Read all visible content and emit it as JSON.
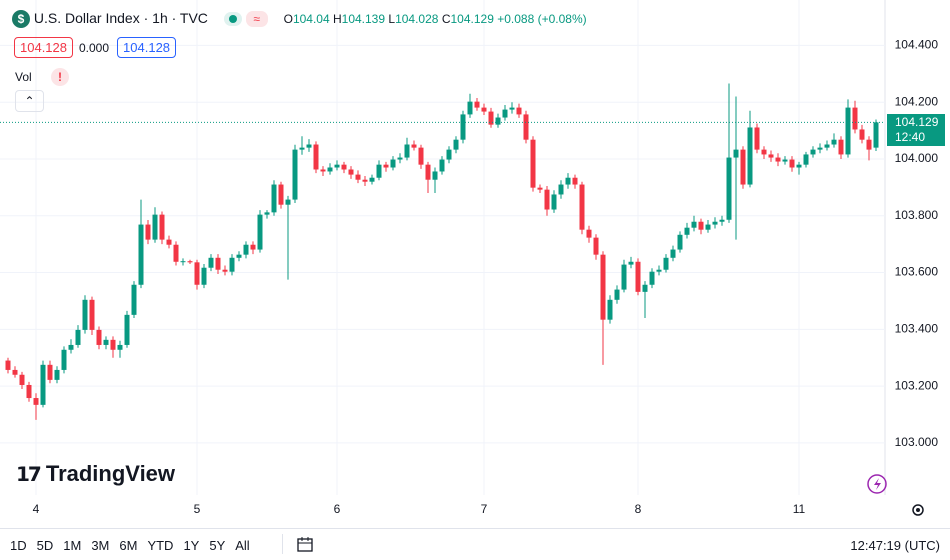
{
  "header": {
    "symbol_icon": "$",
    "title": "U.S. Dollar Index · 1h · TVC",
    "o_label": "O",
    "h_label": "H",
    "l_label": "L",
    "c_label": "C",
    "change": "+0.088",
    "change_pct": "(+0.08%)",
    "bid": "104.128",
    "spread": "0.000",
    "ask": "104.128",
    "volume_label": "Vol",
    "countdown": "12:40",
    "logo": "TradingView"
  },
  "toolbar": {
    "ranges": [
      "1D",
      "5D",
      "1M",
      "3M",
      "6M",
      "YTD",
      "1Y",
      "5Y",
      "All"
    ],
    "time": "12:47:19 (UTC)"
  },
  "chart_data": {
    "type": "candlestick",
    "up_color": "#089981",
    "down_color": "#f23645",
    "grid": true,
    "ylim": [
      102.82,
      104.56
    ],
    "yticks": [
      {
        "value": 103.0,
        "label": "103.000"
      },
      {
        "value": 103.2,
        "label": "103.200"
      },
      {
        "value": 103.4,
        "label": "103.400"
      },
      {
        "value": 103.6,
        "label": "103.600"
      },
      {
        "value": 103.8,
        "label": "103.800"
      },
      {
        "value": 104.0,
        "label": "104.000"
      },
      {
        "value": 104.2,
        "label": "104.200"
      },
      {
        "value": 104.4,
        "label": "104.400"
      }
    ],
    "categories": [
      null,
      null,
      null,
      null,
      "4",
      null,
      null,
      null,
      null,
      null,
      null,
      null,
      null,
      null,
      null,
      null,
      null,
      null,
      null,
      null,
      null,
      null,
      null,
      null,
      null,
      null,
      null,
      "5",
      null,
      null,
      null,
      null,
      null,
      null,
      null,
      null,
      null,
      null,
      null,
      null,
      null,
      null,
      null,
      null,
      null,
      null,
      null,
      "6",
      null,
      null,
      null,
      null,
      null,
      null,
      null,
      null,
      null,
      null,
      null,
      null,
      null,
      null,
      null,
      null,
      null,
      null,
      null,
      null,
      "7",
      null,
      null,
      null,
      null,
      null,
      null,
      null,
      null,
      null,
      null,
      null,
      null,
      null,
      null,
      null,
      null,
      null,
      null,
      null,
      null,
      null,
      "8",
      null,
      null,
      null,
      null,
      null,
      null,
      null,
      null,
      null,
      null,
      null,
      null,
      null,
      null,
      null,
      null,
      null,
      null,
      null,
      null,
      null,
      null,
      "11",
      null,
      null,
      null,
      null,
      null,
      null,
      null,
      null,
      null,
      null,
      null
    ],
    "ohlc": [
      [
        103.29,
        103.3,
        103.245,
        103.257
      ],
      [
        103.257,
        103.27,
        103.23,
        103.24
      ],
      [
        103.24,
        103.25,
        103.19,
        103.204
      ],
      [
        103.204,
        103.215,
        103.145,
        103.158
      ],
      [
        103.158,
        103.175,
        103.081,
        103.134
      ],
      [
        103.134,
        103.29,
        103.125,
        103.275
      ],
      [
        103.275,
        103.29,
        103.21,
        103.222
      ],
      [
        103.222,
        103.27,
        103.21,
        103.257
      ],
      [
        103.257,
        103.34,
        103.245,
        103.328
      ],
      [
        103.328,
        103.365,
        103.315,
        103.345
      ],
      [
        103.345,
        103.415,
        103.335,
        103.398
      ],
      [
        103.398,
        103.52,
        103.385,
        103.504
      ],
      [
        103.504,
        103.515,
        103.38,
        103.398
      ],
      [
        103.398,
        103.41,
        103.33,
        103.345
      ],
      [
        103.345,
        103.375,
        103.33,
        103.363
      ],
      [
        103.363,
        103.375,
        103.3,
        103.328
      ],
      [
        103.328,
        103.36,
        103.3,
        103.345
      ],
      [
        103.345,
        103.465,
        103.335,
        103.451
      ],
      [
        103.451,
        103.57,
        103.44,
        103.557
      ],
      [
        103.557,
        103.857,
        103.545,
        103.769
      ],
      [
        103.769,
        103.785,
        103.7,
        103.716
      ],
      [
        103.716,
        103.83,
        103.705,
        103.804
      ],
      [
        103.804,
        103.815,
        103.7,
        103.716
      ],
      [
        103.716,
        103.73,
        103.685,
        103.698
      ],
      [
        103.698,
        103.71,
        103.625,
        103.638
      ],
      [
        103.638,
        103.65,
        103.625,
        103.64
      ],
      [
        103.64,
        103.645,
        103.63,
        103.636
      ],
      [
        103.636,
        103.645,
        103.54,
        103.557
      ],
      [
        103.557,
        103.63,
        103.545,
        103.617
      ],
      [
        103.617,
        103.665,
        103.605,
        103.652
      ],
      [
        103.652,
        103.665,
        103.595,
        103.61
      ],
      [
        103.61,
        103.625,
        103.59,
        103.603
      ],
      [
        103.603,
        103.665,
        103.59,
        103.652
      ],
      [
        103.652,
        103.675,
        103.64,
        103.663
      ],
      [
        103.663,
        103.71,
        103.65,
        103.698
      ],
      [
        103.698,
        103.71,
        103.665,
        103.681
      ],
      [
        103.681,
        103.82,
        103.67,
        103.804
      ],
      [
        103.804,
        103.82,
        103.79,
        103.812
      ],
      [
        103.812,
        103.925,
        103.8,
        103.91
      ],
      [
        103.91,
        103.92,
        103.825,
        103.839
      ],
      [
        103.839,
        103.87,
        103.575,
        103.857
      ],
      [
        103.857,
        104.05,
        103.845,
        104.033
      ],
      [
        104.033,
        104.08,
        104.015,
        104.04
      ],
      [
        104.04,
        104.07,
        104.025,
        104.051
      ],
      [
        104.051,
        104.062,
        103.95,
        103.963
      ],
      [
        103.963,
        103.975,
        103.94,
        103.956
      ],
      [
        103.956,
        103.985,
        103.945,
        103.97
      ],
      [
        103.97,
        103.995,
        103.96,
        103.98
      ],
      [
        103.98,
        103.99,
        103.95,
        103.963
      ],
      [
        103.963,
        103.975,
        103.93,
        103.945
      ],
      [
        103.945,
        103.96,
        103.915,
        103.927
      ],
      [
        103.927,
        103.94,
        103.905,
        103.92
      ],
      [
        103.92,
        103.945,
        103.91,
        103.934
      ],
      [
        103.934,
        103.995,
        103.925,
        103.98
      ],
      [
        103.98,
        103.99,
        103.955,
        103.97
      ],
      [
        103.97,
        104.01,
        103.96,
        103.998
      ],
      [
        103.998,
        104.02,
        103.985,
        104.005
      ],
      [
        104.005,
        104.075,
        103.995,
        104.051
      ],
      [
        104.051,
        104.065,
        104.03,
        104.04
      ],
      [
        104.04,
        104.05,
        103.965,
        103.98
      ],
      [
        103.98,
        103.99,
        103.88,
        103.927
      ],
      [
        103.927,
        103.97,
        103.88,
        103.956
      ],
      [
        103.956,
        104.01,
        103.945,
        103.998
      ],
      [
        103.998,
        104.045,
        103.985,
        104.033
      ],
      [
        104.033,
        104.08,
        104.02,
        104.068
      ],
      [
        104.068,
        104.17,
        104.055,
        104.157
      ],
      [
        104.157,
        104.23,
        104.145,
        104.202
      ],
      [
        104.202,
        104.215,
        104.17,
        104.181
      ],
      [
        104.181,
        104.195,
        104.155,
        104.167
      ],
      [
        104.167,
        104.18,
        104.11,
        104.121
      ],
      [
        104.121,
        104.16,
        104.11,
        104.146
      ],
      [
        104.146,
        104.19,
        104.135,
        104.174
      ],
      [
        104.174,
        104.2,
        104.16,
        104.181
      ],
      [
        104.181,
        104.195,
        104.145,
        104.157
      ],
      [
        104.157,
        104.17,
        104.055,
        104.068
      ],
      [
        104.068,
        104.08,
        103.885,
        103.899
      ],
      [
        103.899,
        103.91,
        103.88,
        103.892
      ],
      [
        103.892,
        103.905,
        103.8,
        103.822
      ],
      [
        103.822,
        103.89,
        103.81,
        103.875
      ],
      [
        103.875,
        103.925,
        103.86,
        103.91
      ],
      [
        103.91,
        103.95,
        103.895,
        103.934
      ],
      [
        103.934,
        103.945,
        103.895,
        103.91
      ],
      [
        103.91,
        103.92,
        103.735,
        103.751
      ],
      [
        103.751,
        103.765,
        103.705,
        103.723
      ],
      [
        103.723,
        103.735,
        103.645,
        103.663
      ],
      [
        103.663,
        103.675,
        103.275,
        103.434
      ],
      [
        103.434,
        103.52,
        103.42,
        103.504
      ],
      [
        103.504,
        103.555,
        103.49,
        103.54
      ],
      [
        103.54,
        103.645,
        103.53,
        103.628
      ],
      [
        103.628,
        103.655,
        103.615,
        103.638
      ],
      [
        103.638,
        103.65,
        103.52,
        103.532
      ],
      [
        103.532,
        103.57,
        103.44,
        103.557
      ],
      [
        103.557,
        103.615,
        103.545,
        103.603
      ],
      [
        103.603,
        103.625,
        103.59,
        103.61
      ],
      [
        103.61,
        103.665,
        103.6,
        103.652
      ],
      [
        103.652,
        103.695,
        103.64,
        103.681
      ],
      [
        103.681,
        103.745,
        103.67,
        103.733
      ],
      [
        103.733,
        103.775,
        103.72,
        103.758
      ],
      [
        103.758,
        103.8,
        103.745,
        103.779
      ],
      [
        103.779,
        103.79,
        103.735,
        103.751
      ],
      [
        103.751,
        103.785,
        103.74,
        103.769
      ],
      [
        103.769,
        103.795,
        103.755,
        103.779
      ],
      [
        103.779,
        103.8,
        103.765,
        103.786
      ],
      [
        103.786,
        104.266,
        103.775,
        104.005
      ],
      [
        104.005,
        104.22,
        103.716,
        104.033
      ],
      [
        104.033,
        104.045,
        103.895,
        103.91
      ],
      [
        103.91,
        104.17,
        103.9,
        104.111
      ],
      [
        104.111,
        104.125,
        104.02,
        104.033
      ],
      [
        104.033,
        104.045,
        104.0,
        104.016
      ],
      [
        104.016,
        104.03,
        103.99,
        104.005
      ],
      [
        104.005,
        104.02,
        103.975,
        103.991
      ],
      [
        103.991,
        104.01,
        103.98,
        103.998
      ],
      [
        103.998,
        104.01,
        103.955,
        103.97
      ],
      [
        103.97,
        103.99,
        103.945,
        103.98
      ],
      [
        103.98,
        104.025,
        103.97,
        104.016
      ],
      [
        104.016,
        104.045,
        104.005,
        104.033
      ],
      [
        104.033,
        104.055,
        104.02,
        104.04
      ],
      [
        104.04,
        104.065,
        104.03,
        104.051
      ],
      [
        104.051,
        104.09,
        104.04,
        104.068
      ],
      [
        104.068,
        104.08,
        104.0,
        104.016
      ],
      [
        104.016,
        104.21,
        104.005,
        104.181
      ],
      [
        104.181,
        104.205,
        104.09,
        104.104
      ],
      [
        104.104,
        104.12,
        104.055,
        104.068
      ],
      [
        104.068,
        104.08,
        103.995,
        104.033
      ],
      [
        104.04,
        104.139,
        104.028,
        104.129
      ]
    ]
  }
}
